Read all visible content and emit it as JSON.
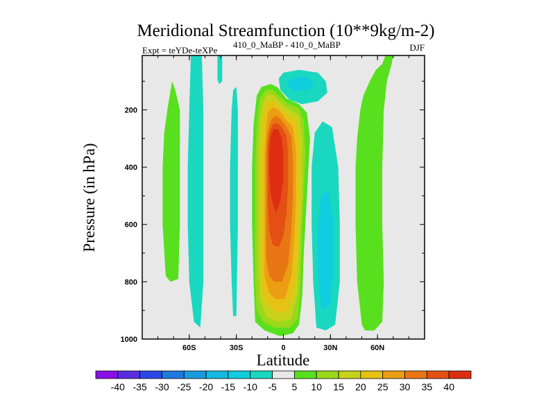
{
  "chart_data": {
    "type": "heatmap",
    "title": "Meridional Streamfunction (10**9kg/m-2)",
    "subtitle_left": "Expt = teYDe-teXPe",
    "subtitle_super": "410_0_MaBP - 410_0_MaBP",
    "subtitle_right": "DJF",
    "xlabel": "Latitude",
    "ylabel": "Pressure (in hPa)",
    "xlim": [
      -90,
      90
    ],
    "ylim": [
      1000,
      10
    ],
    "x_ticks": [
      {
        "value": -60,
        "label": "60S"
      },
      {
        "value": -30,
        "label": "30S"
      },
      {
        "value": 0,
        "label": "0"
      },
      {
        "value": 30,
        "label": "30N"
      },
      {
        "value": 60,
        "label": "60N"
      }
    ],
    "y_ticks": [
      {
        "value": 200,
        "label": "200"
      },
      {
        "value": 400,
        "label": "400"
      },
      {
        "value": 600,
        "label": "600"
      },
      {
        "value": 800,
        "label": "800"
      },
      {
        "value": 1000,
        "label": "1000"
      }
    ],
    "colorbar": {
      "levels": [
        -40,
        -35,
        -30,
        -25,
        -20,
        -15,
        -10,
        -5,
        5,
        10,
        15,
        20,
        25,
        30,
        35,
        40
      ],
      "labels": [
        "-40",
        "-35",
        "-30",
        "-25",
        "-20",
        "-15",
        "-10",
        "-5",
        "5",
        "10",
        "15",
        "20",
        "25",
        "30",
        "35",
        "40"
      ],
      "colors": [
        "#8a10e8",
        "#5a2ee0",
        "#2a48e8",
        "#1f78e0",
        "#1a9ae0",
        "#14b8e2",
        "#10cde0",
        "#1ad8c0",
        "#e8e8e8",
        "#58e01e",
        "#9ad81a",
        "#c8d21a",
        "#e6c214",
        "#ec9e12",
        "#e87614",
        "#e45014",
        "#de2e12"
      ]
    },
    "missing_color": "#e8e8e8",
    "regions": [
      {
        "name": "cyan-band-65s",
        "level": -5,
        "points": [
          [
            -72,
            800
          ],
          [
            -75,
            600
          ],
          [
            -76,
            400
          ],
          [
            -75,
            280
          ],
          [
            -73,
            200
          ],
          [
            -71,
            140
          ],
          [
            -69,
            150
          ],
          [
            -68,
            220
          ],
          [
            -68,
            400
          ],
          [
            -69,
            600
          ],
          [
            -70,
            790
          ]
        ]
      },
      {
        "name": "cyan-band-50s",
        "level": -5,
        "points": [
          [
            -57,
            940
          ],
          [
            -60,
            800
          ],
          [
            -61,
            600
          ],
          [
            -61,
            400
          ],
          [
            -60,
            200
          ],
          [
            -59,
            10
          ],
          [
            -52,
            10
          ],
          [
            -51,
            200
          ],
          [
            -51,
            400
          ],
          [
            -51,
            600
          ],
          [
            -51,
            800
          ],
          [
            -53,
            960
          ]
        ]
      },
      {
        "name": "cyan-band-30s",
        "level": -5,
        "points": [
          [
            -32,
            920
          ],
          [
            -33,
            800
          ],
          [
            -34,
            600
          ],
          [
            -34,
            400
          ],
          [
            -33,
            200
          ],
          [
            -32,
            130
          ],
          [
            -30,
            120
          ],
          [
            -29,
            200
          ],
          [
            -29,
            400
          ],
          [
            -29,
            600
          ],
          [
            -30,
            920
          ]
        ]
      },
      {
        "name": "cyan-band-40s-top",
        "level": -5,
        "points": [
          [
            -42,
            10
          ],
          [
            -42,
            95
          ],
          [
            -41,
            110
          ],
          [
            -39,
            100
          ],
          [
            -39,
            10
          ]
        ]
      },
      {
        "name": "cyan-cell-upper",
        "level": -5,
        "points": [
          [
            -3,
            90
          ],
          [
            0,
            70
          ],
          [
            10,
            60
          ],
          [
            22,
            70
          ],
          [
            27,
            100
          ],
          [
            28,
            140
          ],
          [
            22,
            170
          ],
          [
            12,
            180
          ],
          [
            4,
            165
          ],
          [
            -2,
            130
          ]
        ]
      },
      {
        "name": "cyan-cell-upper-inner",
        "level": -10,
        "points": [
          [
            3,
            100
          ],
          [
            8,
            85
          ],
          [
            15,
            85
          ],
          [
            20,
            105
          ],
          [
            16,
            130
          ],
          [
            8,
            135
          ],
          [
            3,
            120
          ]
        ]
      },
      {
        "name": "cyan-band-30n",
        "level": -5,
        "points": [
          [
            21,
            960
          ],
          [
            19,
            800
          ],
          [
            18,
            600
          ],
          [
            18,
            400
          ],
          [
            20,
            280
          ],
          [
            25,
            240
          ],
          [
            31,
            260
          ],
          [
            35,
            400
          ],
          [
            36,
            600
          ],
          [
            36,
            800
          ],
          [
            33,
            950
          ],
          [
            27,
            970
          ]
        ]
      },
      {
        "name": "cyan-band-30n-inner",
        "level": -10,
        "points": [
          [
            24,
            900
          ],
          [
            22,
            750
          ],
          [
            22,
            600
          ],
          [
            24,
            500
          ],
          [
            29,
            480
          ],
          [
            32,
            600
          ],
          [
            32,
            750
          ],
          [
            30,
            880
          ]
        ]
      },
      {
        "name": "green-band-65s",
        "level": 5,
        "points": [
          [
            -75,
            780
          ],
          [
            -77,
            600
          ],
          [
            -77,
            400
          ],
          [
            -76,
            280
          ],
          [
            -74,
            200
          ],
          [
            -71,
            100
          ],
          [
            -69,
            130
          ],
          [
            -66,
            200
          ],
          [
            -66,
            400
          ],
          [
            -66,
            600
          ],
          [
            -67,
            790
          ],
          [
            -72,
            800
          ]
        ]
      },
      {
        "name": "green-band-60n",
        "level": 5,
        "points": [
          [
            50,
            950
          ],
          [
            47,
            800
          ],
          [
            46,
            600
          ],
          [
            46,
            400
          ],
          [
            47,
            300
          ],
          [
            49,
            200
          ],
          [
            51,
            150
          ],
          [
            55,
            100
          ],
          [
            59,
            60
          ],
          [
            63,
            40
          ],
          [
            65,
            10
          ],
          [
            70,
            10
          ],
          [
            69,
            40
          ],
          [
            66,
            100
          ],
          [
            64,
            200
          ],
          [
            63,
            400
          ],
          [
            63,
            600
          ],
          [
            64,
            800
          ],
          [
            63,
            940
          ],
          [
            58,
            970
          ],
          [
            52,
            970
          ]
        ]
      },
      {
        "name": "green-cell-equator",
        "level": 5,
        "points": [
          [
            -18,
            940
          ],
          [
            -19,
            800
          ],
          [
            -20,
            600
          ],
          [
            -20,
            400
          ],
          [
            -19,
            250
          ],
          [
            -17,
            150
          ],
          [
            -14,
            120
          ],
          [
            -8,
            110
          ],
          [
            -4,
            120
          ],
          [
            2,
            160
          ],
          [
            10,
            180
          ],
          [
            15,
            210
          ],
          [
            17,
            300
          ],
          [
            15,
            500
          ],
          [
            13,
            700
          ],
          [
            12,
            850
          ],
          [
            10,
            950
          ],
          [
            6,
            980
          ],
          [
            -2,
            990
          ],
          [
            -12,
            970
          ]
        ]
      },
      {
        "name": "level-10",
        "level": 10,
        "points": [
          [
            -17,
            900
          ],
          [
            -18,
            800
          ],
          [
            -18,
            600
          ],
          [
            -18,
            400
          ],
          [
            -17,
            250
          ],
          [
            -15,
            160
          ],
          [
            -11,
            130
          ],
          [
            -7,
            130
          ],
          [
            -3,
            150
          ],
          [
            2,
            175
          ],
          [
            10,
            195
          ],
          [
            13,
            240
          ],
          [
            14,
            350
          ],
          [
            12,
            600
          ],
          [
            11,
            800
          ],
          [
            9,
            930
          ],
          [
            4,
            960
          ],
          [
            -6,
            960
          ],
          [
            -13,
            940
          ]
        ]
      },
      {
        "name": "level-15",
        "level": 15,
        "points": [
          [
            -15,
            860
          ],
          [
            -16,
            700
          ],
          [
            -16,
            500
          ],
          [
            -16,
            350
          ],
          [
            -15,
            240
          ],
          [
            -13,
            170
          ],
          [
            -10,
            145
          ],
          [
            -6,
            150
          ],
          [
            -2,
            175
          ],
          [
            4,
            200
          ],
          [
            10,
            220
          ],
          [
            12,
            300
          ],
          [
            12,
            500
          ],
          [
            10,
            700
          ],
          [
            9,
            840
          ],
          [
            5,
            930
          ],
          [
            -4,
            940
          ],
          [
            -11,
            920
          ]
        ]
      },
      {
        "name": "level-20",
        "level": 20,
        "points": [
          [
            -14,
            820
          ],
          [
            -14,
            700
          ],
          [
            -14,
            500
          ],
          [
            -14,
            350
          ],
          [
            -13,
            250
          ],
          [
            -12,
            190
          ],
          [
            -9,
            170
          ],
          [
            -5,
            175
          ],
          [
            -2,
            195
          ],
          [
            3,
            220
          ],
          [
            8,
            240
          ],
          [
            10,
            320
          ],
          [
            10,
            500
          ],
          [
            9,
            700
          ],
          [
            7,
            820
          ],
          [
            3,
            900
          ],
          [
            -4,
            910
          ],
          [
            -10,
            880
          ]
        ]
      },
      {
        "name": "level-25",
        "level": 25,
        "points": [
          [
            -12,
            780
          ],
          [
            -12,
            650
          ],
          [
            -12,
            500
          ],
          [
            -12,
            350
          ],
          [
            -11,
            260
          ],
          [
            -10,
            210
          ],
          [
            -7,
            190
          ],
          [
            -3,
            200
          ],
          [
            1,
            230
          ],
          [
            6,
            260
          ],
          [
            8,
            340
          ],
          [
            8,
            500
          ],
          [
            7,
            650
          ],
          [
            5,
            780
          ],
          [
            1,
            860
          ],
          [
            -5,
            860
          ],
          [
            -9,
            840
          ]
        ]
      },
      {
        "name": "level-30",
        "level": 30,
        "points": [
          [
            -11,
            720
          ],
          [
            -11,
            600
          ],
          [
            -11,
            480
          ],
          [
            -11,
            350
          ],
          [
            -10,
            280
          ],
          [
            -8,
            235
          ],
          [
            -5,
            220
          ],
          [
            -2,
            230
          ],
          [
            2,
            260
          ],
          [
            5,
            290
          ],
          [
            6,
            380
          ],
          [
            6,
            500
          ],
          [
            5,
            620
          ],
          [
            3,
            740
          ],
          [
            -1,
            800
          ],
          [
            -6,
            800
          ],
          [
            -9,
            780
          ]
        ]
      },
      {
        "name": "level-35",
        "level": 35,
        "points": [
          [
            -9,
            620
          ],
          [
            -10,
            520
          ],
          [
            -10,
            420
          ],
          [
            -10,
            330
          ],
          [
            -9,
            280
          ],
          [
            -7,
            250
          ],
          [
            -4,
            245
          ],
          [
            -1,
            260
          ],
          [
            2,
            290
          ],
          [
            3,
            360
          ],
          [
            3,
            460
          ],
          [
            2,
            560
          ],
          [
            0,
            640
          ],
          [
            -3,
            680
          ],
          [
            -7,
            670
          ]
        ]
      },
      {
        "name": "level-40",
        "level": 40,
        "points": [
          [
            -8,
            500
          ],
          [
            -9,
            420
          ],
          [
            -9,
            340
          ],
          [
            -8,
            290
          ],
          [
            -6,
            265
          ],
          [
            -3,
            270
          ],
          [
            -1,
            300
          ],
          [
            0,
            360
          ],
          [
            0,
            440
          ],
          [
            -2,
            520
          ],
          [
            -5,
            560
          ]
        ]
      }
    ]
  }
}
